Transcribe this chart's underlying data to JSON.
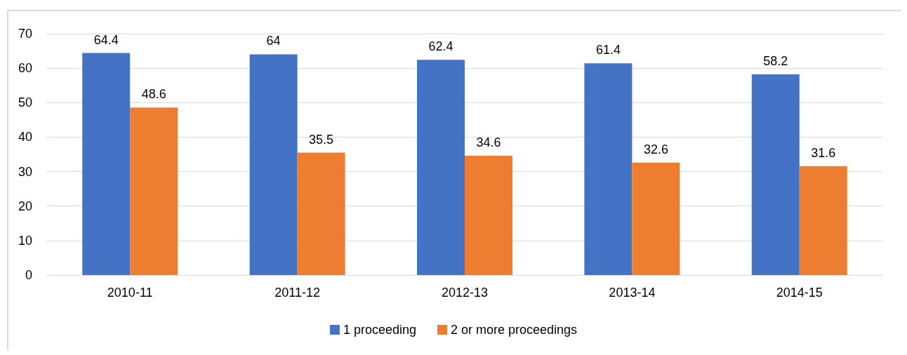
{
  "chart_data": {
    "type": "bar",
    "categories": [
      "2010-11",
      "2011-12",
      "2012-13",
      "2013-14",
      "2014-15"
    ],
    "series": [
      {
        "name": "1 proceeding",
        "color": "#4472c4",
        "values": [
          64.4,
          64,
          62.4,
          61.4,
          58.2
        ]
      },
      {
        "name": "2 or more proceedings",
        "color": "#ed7d31",
        "values": [
          48.6,
          35.5,
          34.6,
          32.6,
          31.6
        ]
      }
    ],
    "ylim": [
      0,
      70
    ],
    "yticks": [
      0,
      10,
      20,
      30,
      40,
      50,
      60,
      70
    ],
    "grid": "y",
    "legend": "bottom",
    "data_labels": true
  }
}
